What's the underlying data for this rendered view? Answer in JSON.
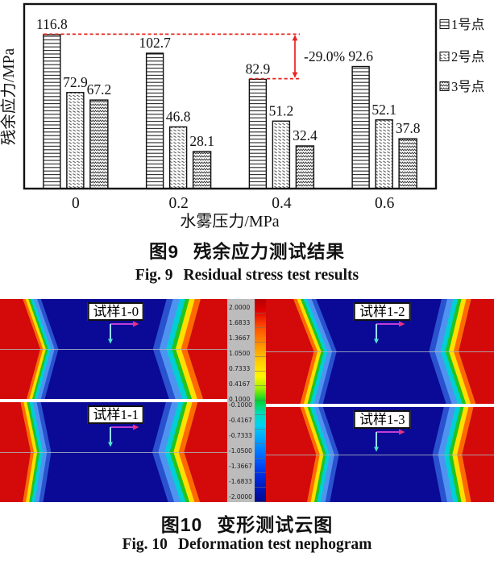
{
  "chart_data": {
    "type": "bar",
    "title": "",
    "categories": [
      "0",
      "0.2",
      "0.4",
      "0.6"
    ],
    "series": [
      {
        "name": "1号点",
        "pattern": "hlines",
        "values": [
          116.8,
          102.7,
          82.9,
          92.6
        ]
      },
      {
        "name": "2号点",
        "pattern": "diag",
        "values": [
          72.9,
          46.8,
          51.2,
          52.1
        ]
      },
      {
        "name": "3号点",
        "pattern": "zigzag",
        "values": [
          67.2,
          28.1,
          32.4,
          37.8
        ]
      }
    ],
    "xlabel": "水雾压力/MPa",
    "ylabel": "残余应力/MPa",
    "ylim": [
      0,
      140
    ],
    "grid": false,
    "legend_position": "right-outside",
    "annotation": {
      "text": "-29.0%",
      "series": 0,
      "from_group": 0,
      "to_group": 2,
      "color": "#e8231f"
    }
  },
  "figure9": {
    "caption_zh": {
      "label": "图9",
      "text": "残余应力测试结果"
    },
    "caption_en": {
      "label": "Fig. 9",
      "text": "Residual stress test results"
    }
  },
  "figure10": {
    "panels": [
      {
        "label": "试样1-0",
        "left": {
          "red": [
            10,
            17.7,
            11.7
          ],
          "band": 8
        },
        "right": {
          "red": [
            11.7,
            17.7,
            10.6
          ],
          "band": 15
        }
      },
      {
        "label": "试样1-1",
        "left": {
          "red": [
            9,
            13.5,
            10
          ],
          "band": 9
        },
        "right": {
          "red": [
            13,
            19,
            12
          ],
          "band": 14
        }
      },
      {
        "label": "试样1-2",
        "left": {
          "red": [
            12,
            21,
            15
          ],
          "band": 10
        },
        "right": {
          "red": [
            10,
            15.5,
            8
          ],
          "band": 13
        }
      },
      {
        "label": "试样1-3",
        "left": {
          "red": [
            15,
            22,
            18
          ],
          "band": 10
        },
        "right": {
          "red": [
            9,
            14,
            10
          ],
          "band": 13
        }
      }
    ],
    "colors": {
      "navy": "#0a0a96",
      "red": "#d40a0a",
      "bands": [
        "#ff6a00",
        "#ffdf00",
        "#22c41e",
        "#00cfd6",
        "#4f93f0",
        "#2a52cf"
      ]
    },
    "colorbar": {
      "values": [
        "2.0000",
        "1.6833",
        "1.3667",
        "1.0500",
        "0.7333",
        "0.4167",
        "0.1000",
        "-0.1000",
        "-0.4167",
        "-0.7333",
        "-1.0500",
        "-1.3667",
        "-1.6833",
        "-2.0000"
      ]
    },
    "caption_zh": {
      "label": "图10",
      "text": "变形测试云图"
    },
    "caption_en": {
      "label": "Fig. 10",
      "text": "Deformation test nephogram"
    }
  }
}
